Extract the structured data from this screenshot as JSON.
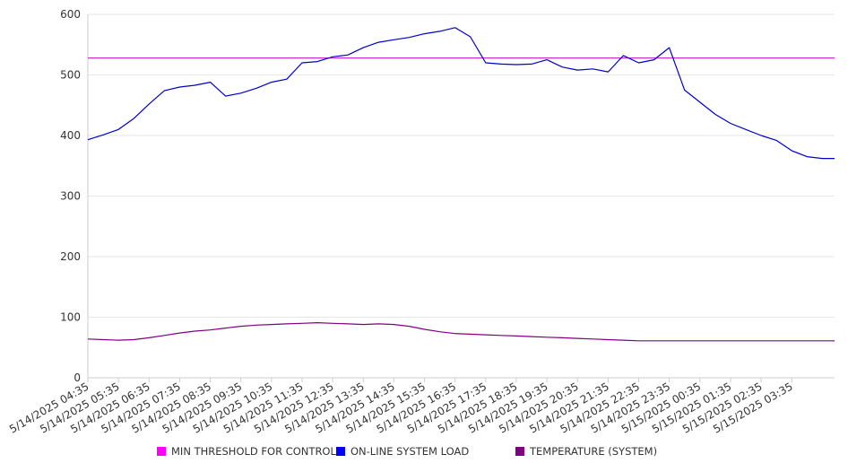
{
  "chart_data": {
    "type": "line",
    "title": "",
    "xlabel": "",
    "ylabel": "",
    "ylim": [
      0,
      600
    ],
    "yticks": [
      0,
      100,
      200,
      300,
      400,
      500,
      600
    ],
    "grid": true,
    "legend_position": "bottom",
    "x_tick_labels": [
      "5/14/2025 04:35",
      "5/14/2025 05:35",
      "5/14/2025 06:35",
      "5/14/2025 07:35",
      "5/14/2025 08:35",
      "5/14/2025 09:35",
      "5/14/2025 10:35",
      "5/14/2025 11:35",
      "5/14/2025 12:35",
      "5/14/2025 13:35",
      "5/14/2025 14:35",
      "5/14/2025 15:35",
      "5/14/2025 16:35",
      "5/14/2025 17:35",
      "5/14/2025 18:35",
      "5/14/2025 19:35",
      "5/14/2025 20:35",
      "5/14/2025 21:35",
      "5/14/2025 22:35",
      "5/14/2025 23:35",
      "5/15/2025 00:35",
      "5/15/2025 01:35",
      "5/15/2025 02:35",
      "5/15/2025 03:35"
    ],
    "x_hours": [
      0,
      0.5,
      1,
      1.5,
      2,
      2.5,
      3,
      3.5,
      4,
      4.5,
      5,
      5.5,
      6,
      6.5,
      7,
      7.5,
      8,
      8.5,
      9,
      9.5,
      10,
      10.5,
      11,
      11.5,
      12,
      12.5,
      13,
      13.5,
      14,
      14.5,
      15,
      15.5,
      16,
      16.5,
      17,
      17.5,
      18,
      18.5,
      19,
      19.5,
      20,
      20.5,
      21,
      21.5,
      22,
      22.5,
      23,
      23.5,
      24
    ],
    "series": [
      {
        "name": "MIN THRESHOLD FOR CONTROL",
        "color": "#cc33cc",
        "values": [
          528,
          528,
          528,
          528,
          528,
          528,
          528,
          528,
          528,
          528,
          528,
          528,
          528,
          528,
          528,
          528,
          528,
          528,
          528,
          528,
          528,
          528,
          528,
          528,
          528,
          528,
          528,
          528,
          528,
          528,
          528,
          528,
          528,
          528,
          528,
          528,
          528,
          528,
          528,
          528,
          528,
          528,
          528,
          528,
          528,
          528,
          528,
          528,
          528
        ]
      },
      {
        "name": "ON-LINE SYSTEM LOAD",
        "color": "#0000cc",
        "values": [
          393,
          401,
          410,
          428,
          452,
          474,
          480,
          483,
          488,
          465,
          470,
          478,
          488,
          493,
          520,
          522,
          530,
          533,
          545,
          554,
          558,
          562,
          568,
          572,
          578,
          563,
          520,
          518,
          517,
          518,
          525,
          513,
          508,
          510,
          505,
          532,
          520,
          525,
          545,
          475,
          455,
          435,
          420,
          410,
          400,
          392,
          375,
          365,
          362
        ]
      },
      {
        "name": "TEMPERATURE (SYSTEM)",
        "color": "#800080",
        "values": [
          64,
          63,
          62,
          63,
          66,
          70,
          74,
          77,
          79,
          82,
          85,
          87,
          88,
          89,
          90,
          91,
          90,
          89,
          88,
          89,
          88,
          85,
          80,
          76,
          73,
          72,
          71,
          70,
          69,
          68,
          67,
          66,
          65,
          64,
          63,
          62,
          61,
          61,
          61,
          61,
          61,
          61,
          61,
          61,
          61,
          61,
          61,
          61,
          61
        ]
      }
    ]
  }
}
